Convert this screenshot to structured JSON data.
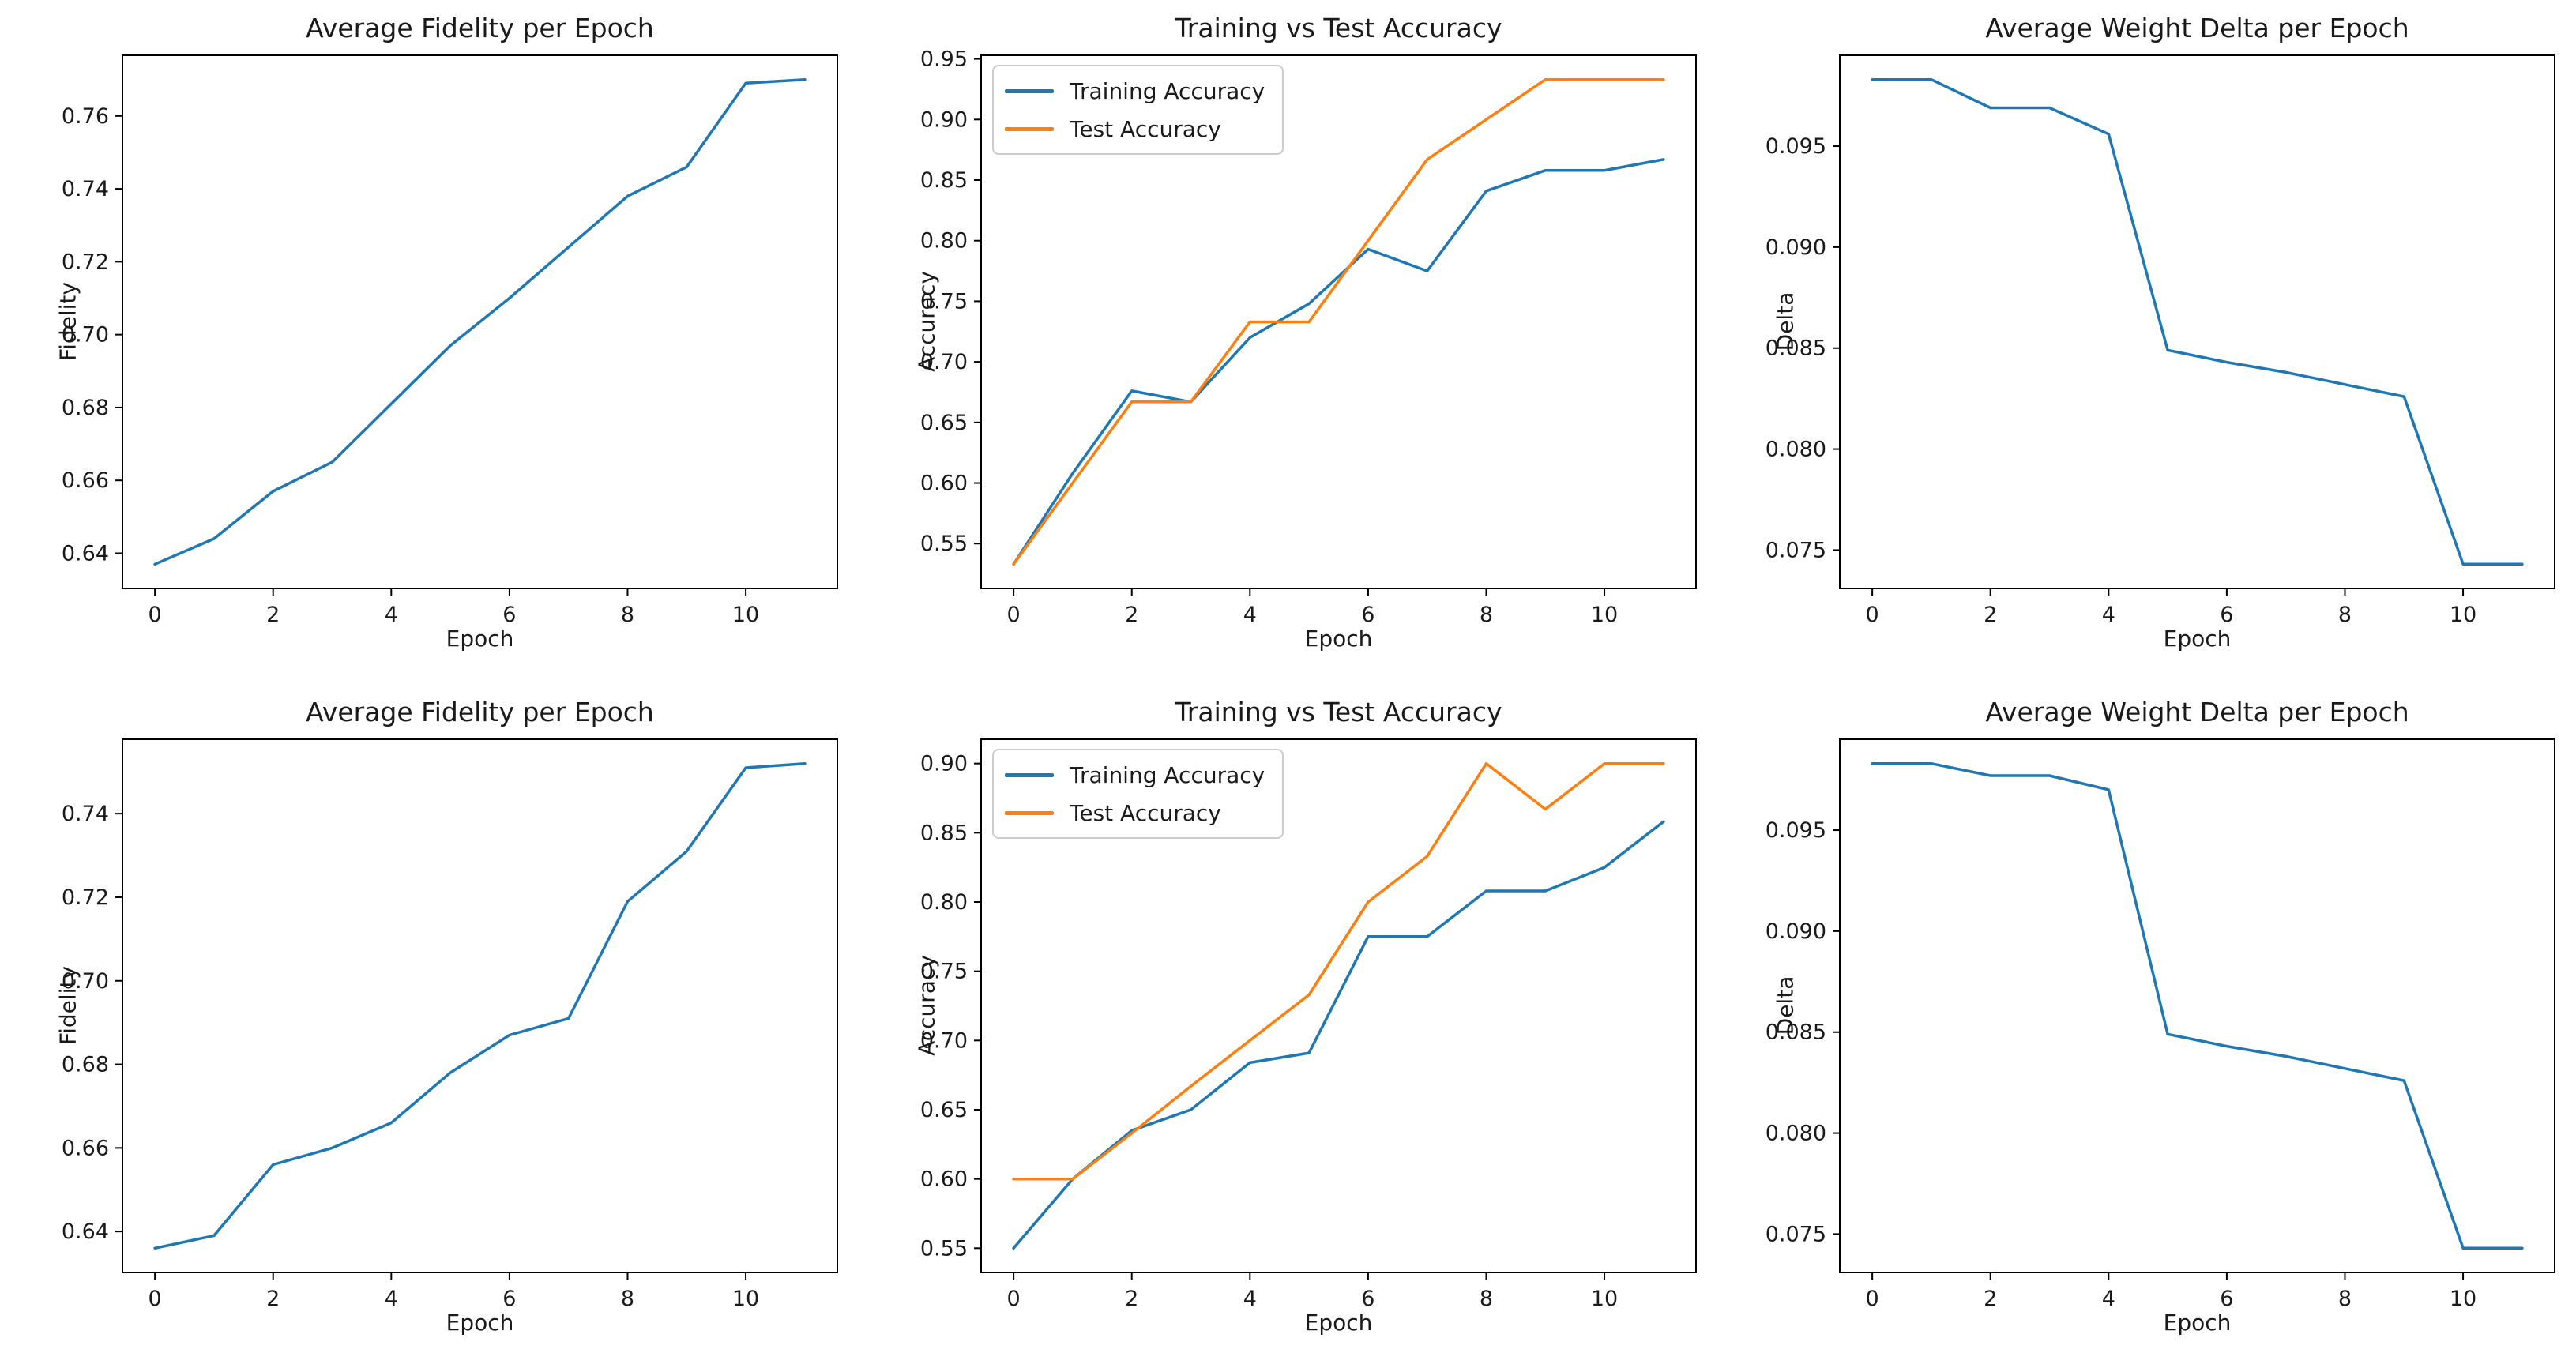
{
  "figure": {
    "background": "#ffffff",
    "text_color": "#1a1a1a",
    "spine_color": "#000000"
  },
  "palette": {
    "blue": "#1f77b4",
    "orange": "#ff7f0e"
  },
  "chart_data": [
    {
      "type": "line",
      "title": "Average Fidelity per Epoch",
      "xlabel": "Epoch",
      "ylabel": "Fidelity",
      "grid": false,
      "x": [
        0,
        1,
        2,
        3,
        4,
        5,
        6,
        7,
        8,
        9,
        10,
        11
      ],
      "xticks": [
        0,
        2,
        4,
        6,
        8,
        10
      ],
      "xtick_labels": [
        "0",
        "2",
        "4",
        "6",
        "8",
        "10"
      ],
      "yticks": [
        0.64,
        0.66,
        0.68,
        0.7,
        0.72,
        0.74,
        0.76
      ],
      "ytick_labels": [
        "0.64",
        "0.66",
        "0.68",
        "0.70",
        "0.72",
        "0.74",
        "0.76"
      ],
      "series": [
        {
          "name": "Fidelity",
          "color": "#1f77b4",
          "values": [
            0.637,
            0.644,
            0.657,
            0.665,
            0.681,
            0.697,
            0.71,
            0.724,
            0.738,
            0.746,
            0.769,
            0.77
          ]
        }
      ],
      "legend": false
    },
    {
      "type": "line",
      "title": "Training vs Test Accuracy",
      "xlabel": "Epoch",
      "ylabel": "Accuracy",
      "grid": false,
      "x": [
        0,
        1,
        2,
        3,
        4,
        5,
        6,
        7,
        8,
        9,
        10,
        11
      ],
      "xticks": [
        0,
        2,
        4,
        6,
        8,
        10
      ],
      "xtick_labels": [
        "0",
        "2",
        "4",
        "6",
        "8",
        "10"
      ],
      "yticks": [
        0.55,
        0.6,
        0.65,
        0.7,
        0.75,
        0.8,
        0.85,
        0.9,
        0.95
      ],
      "ytick_labels": [
        "0.55",
        "0.60",
        "0.65",
        "0.70",
        "0.75",
        "0.80",
        "0.85",
        "0.90",
        "0.95"
      ],
      "series": [
        {
          "name": "Training Accuracy",
          "color": "#1f77b4",
          "values": [
            0.533,
            0.608,
            0.676,
            0.667,
            0.72,
            0.748,
            0.793,
            0.775,
            0.841,
            0.858,
            0.858,
            0.867
          ]
        },
        {
          "name": "Test Accuracy",
          "color": "#ff7f0e",
          "values": [
            0.533,
            0.6,
            0.667,
            0.667,
            0.733,
            0.733,
            0.8,
            0.867,
            0.9,
            0.933,
            0.933,
            0.933
          ]
        }
      ],
      "legend": true,
      "legend_position": "upper left"
    },
    {
      "type": "line",
      "title": "Average Weight Delta per Epoch",
      "xlabel": "Epoch",
      "ylabel": "Delta",
      "grid": false,
      "x": [
        0,
        1,
        2,
        3,
        4,
        5,
        6,
        7,
        8,
        9,
        10,
        11
      ],
      "xticks": [
        0,
        2,
        4,
        6,
        8,
        10
      ],
      "xtick_labels": [
        "0",
        "2",
        "4",
        "6",
        "8",
        "10"
      ],
      "yticks": [
        0.075,
        0.08,
        0.085,
        0.09,
        0.095
      ],
      "ytick_labels": [
        "0.075",
        "0.080",
        "0.085",
        "0.090",
        "0.095"
      ],
      "series": [
        {
          "name": "Delta",
          "color": "#1f77b4",
          "values": [
            0.0983,
            0.0983,
            0.0969,
            0.0969,
            0.0956,
            0.0849,
            0.0843,
            0.0838,
            0.0832,
            0.0826,
            0.0743,
            0.0743
          ]
        }
      ],
      "legend": false
    },
    {
      "type": "line",
      "title": "Average Fidelity per Epoch",
      "xlabel": "Epoch",
      "ylabel": "Fidelity",
      "grid": false,
      "x": [
        0,
        1,
        2,
        3,
        4,
        5,
        6,
        7,
        8,
        9,
        10,
        11
      ],
      "xticks": [
        0,
        2,
        4,
        6,
        8,
        10
      ],
      "xtick_labels": [
        "0",
        "2",
        "4",
        "6",
        "8",
        "10"
      ],
      "yticks": [
        0.64,
        0.66,
        0.68,
        0.7,
        0.72,
        0.74
      ],
      "ytick_labels": [
        "0.64",
        "0.66",
        "0.68",
        "0.70",
        "0.72",
        "0.74"
      ],
      "series": [
        {
          "name": "Fidelity",
          "color": "#1f77b4",
          "values": [
            0.636,
            0.639,
            0.656,
            0.66,
            0.666,
            0.678,
            0.687,
            0.691,
            0.719,
            0.731,
            0.751,
            0.752
          ]
        }
      ],
      "legend": false
    },
    {
      "type": "line",
      "title": "Training vs Test Accuracy",
      "xlabel": "Epoch",
      "ylabel": "Accuracy",
      "grid": false,
      "x": [
        0,
        1,
        2,
        3,
        4,
        5,
        6,
        7,
        8,
        9,
        10,
        11
      ],
      "xticks": [
        0,
        2,
        4,
        6,
        8,
        10
      ],
      "xtick_labels": [
        "0",
        "2",
        "4",
        "6",
        "8",
        "10"
      ],
      "yticks": [
        0.55,
        0.6,
        0.65,
        0.7,
        0.75,
        0.8,
        0.85,
        0.9
      ],
      "ytick_labels": [
        "0.55",
        "0.60",
        "0.65",
        "0.70",
        "0.75",
        "0.80",
        "0.85",
        "0.90"
      ],
      "series": [
        {
          "name": "Training Accuracy",
          "color": "#1f77b4",
          "values": [
            0.55,
            0.6,
            0.635,
            0.65,
            0.684,
            0.691,
            0.775,
            0.775,
            0.808,
            0.808,
            0.825,
            0.858
          ]
        },
        {
          "name": "Test Accuracy",
          "color": "#ff7f0e",
          "values": [
            0.6,
            0.6,
            0.633,
            0.667,
            0.7,
            0.733,
            0.8,
            0.833,
            0.9,
            0.867,
            0.9,
            0.9
          ]
        }
      ],
      "legend": true,
      "legend_position": "upper left"
    },
    {
      "type": "line",
      "title": "Average Weight Delta per Epoch",
      "xlabel": "Epoch",
      "ylabel": "Delta",
      "grid": false,
      "x": [
        0,
        1,
        2,
        3,
        4,
        5,
        6,
        7,
        8,
        9,
        10,
        11
      ],
      "xticks": [
        0,
        2,
        4,
        6,
        8,
        10
      ],
      "xtick_labels": [
        "0",
        "2",
        "4",
        "6",
        "8",
        "10"
      ],
      "yticks": [
        0.075,
        0.08,
        0.085,
        0.09,
        0.095
      ],
      "ytick_labels": [
        "0.075",
        "0.080",
        "0.085",
        "0.090",
        "0.095"
      ],
      "series": [
        {
          "name": "Delta",
          "color": "#1f77b4",
          "values": [
            0.0983,
            0.0983,
            0.0977,
            0.0977,
            0.097,
            0.0849,
            0.0843,
            0.0838,
            0.0832,
            0.0826,
            0.0743,
            0.0743
          ]
        }
      ],
      "legend": false
    }
  ]
}
